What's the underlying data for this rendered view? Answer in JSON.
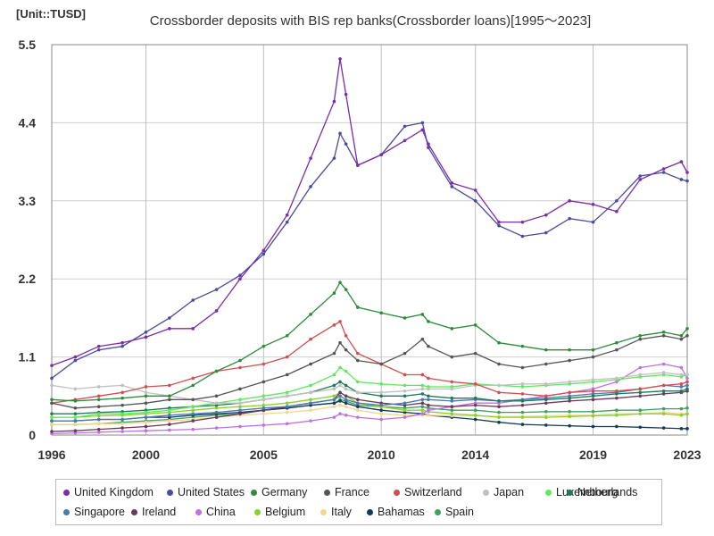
{
  "unit_label": "[Unit::TUSD]",
  "chart_data": {
    "type": "line",
    "title": "Crossborder deposits with BIS rep banks(Crossborder loans)[1995～2023]",
    "xlabel": "",
    "ylabel": "",
    "xlim": [
      1996,
      2023
    ],
    "ylim": [
      0,
      5.5
    ],
    "x_ticks": [
      1996,
      2000,
      2005,
      2010,
      2014,
      2019,
      2023
    ],
    "y_ticks": [
      0,
      1.1,
      2.2,
      3.3,
      4.4,
      5.5
    ],
    "grid": true,
    "legend_position": "bottom",
    "x": [
      1996,
      1997,
      1998,
      1999,
      2000,
      2001,
      2002,
      2003,
      2004,
      2005,
      2006,
      2007,
      2008,
      2008.25,
      2008.5,
      2009,
      2010,
      2011,
      2011.75,
      2012,
      2013,
      2014,
      2015,
      2016,
      2017,
      2018,
      2019,
      2020,
      2021,
      2022,
      2022.75,
      2023
    ],
    "series": [
      {
        "name": "United Kingdom",
        "color": "#7b2ca8",
        "values": [
          0.98,
          1.1,
          1.25,
          1.3,
          1.38,
          1.5,
          1.5,
          1.75,
          2.2,
          2.6,
          3.1,
          3.9,
          4.7,
          5.3,
          4.8,
          3.8,
          3.95,
          4.15,
          4.3,
          4.1,
          3.55,
          3.45,
          3.0,
          3.0,
          3.1,
          3.3,
          3.25,
          3.15,
          3.6,
          3.75,
          3.85,
          3.7
        ]
      },
      {
        "name": "United States",
        "color": "#4a4a9e",
        "values": [
          0.8,
          1.05,
          1.2,
          1.25,
          1.45,
          1.65,
          1.9,
          2.05,
          2.25,
          2.55,
          3.0,
          3.5,
          3.9,
          4.25,
          4.1,
          3.8,
          3.95,
          4.35,
          4.4,
          4.05,
          3.5,
          3.3,
          2.95,
          2.8,
          2.85,
          3.05,
          3.0,
          3.3,
          3.65,
          3.7,
          3.6,
          3.58
        ]
      },
      {
        "name": "Germany",
        "color": "#2e8b3c",
        "values": [
          0.5,
          0.48,
          0.5,
          0.52,
          0.55,
          0.55,
          0.7,
          0.9,
          1.05,
          1.25,
          1.4,
          1.7,
          2.0,
          2.15,
          2.05,
          1.8,
          1.72,
          1.65,
          1.7,
          1.6,
          1.5,
          1.55,
          1.3,
          1.25,
          1.2,
          1.2,
          1.2,
          1.3,
          1.4,
          1.45,
          1.4,
          1.5
        ]
      },
      {
        "name": "France",
        "color": "#555555",
        "values": [
          0.45,
          0.38,
          0.4,
          0.42,
          0.45,
          0.5,
          0.5,
          0.55,
          0.65,
          0.75,
          0.85,
          1.0,
          1.15,
          1.3,
          1.2,
          1.05,
          1.0,
          1.15,
          1.35,
          1.25,
          1.1,
          1.15,
          1.0,
          0.95,
          1.0,
          1.05,
          1.1,
          1.2,
          1.35,
          1.4,
          1.35,
          1.4
        ]
      },
      {
        "name": "Switzerland",
        "color": "#d05050",
        "values": [
          0.45,
          0.5,
          0.55,
          0.6,
          0.68,
          0.7,
          0.8,
          0.9,
          0.95,
          1.0,
          1.1,
          1.35,
          1.55,
          1.6,
          1.4,
          1.15,
          1.0,
          0.85,
          0.85,
          0.8,
          0.75,
          0.72,
          0.6,
          0.58,
          0.55,
          0.6,
          0.62,
          0.62,
          0.65,
          0.7,
          0.72,
          0.75
        ]
      },
      {
        "name": "Japan",
        "color": "#c0c0c0",
        "values": [
          0.7,
          0.65,
          0.68,
          0.7,
          0.6,
          0.55,
          0.5,
          0.45,
          0.45,
          0.5,
          0.55,
          0.6,
          0.65,
          0.7,
          0.65,
          0.6,
          0.6,
          0.62,
          0.65,
          0.65,
          0.65,
          0.7,
          0.7,
          0.72,
          0.72,
          0.75,
          0.78,
          0.8,
          0.85,
          0.88,
          0.85,
          0.85
        ]
      },
      {
        "name": "Luxembourg",
        "color": "#5ee85e",
        "values": [
          0.25,
          0.25,
          0.3,
          0.3,
          0.32,
          0.35,
          0.4,
          0.45,
          0.5,
          0.55,
          0.6,
          0.7,
          0.85,
          0.95,
          0.9,
          0.75,
          0.72,
          0.7,
          0.7,
          0.68,
          0.68,
          0.72,
          0.7,
          0.68,
          0.7,
          0.72,
          0.75,
          0.78,
          0.82,
          0.85,
          0.82,
          0.85
        ]
      },
      {
        "name": "Netherlands",
        "color": "#1f7a5a",
        "values": [
          0.3,
          0.3,
          0.32,
          0.33,
          0.35,
          0.38,
          0.4,
          0.42,
          0.45,
          0.5,
          0.55,
          0.6,
          0.7,
          0.75,
          0.7,
          0.6,
          0.55,
          0.55,
          0.58,
          0.55,
          0.52,
          0.52,
          0.48,
          0.48,
          0.5,
          0.52,
          0.55,
          0.58,
          0.6,
          0.62,
          0.62,
          0.65
        ]
      },
      {
        "name": "Singapore",
        "color": "#4a7bb0",
        "values": [
          0.2,
          0.2,
          0.22,
          0.22,
          0.25,
          0.28,
          0.3,
          0.32,
          0.35,
          0.38,
          0.4,
          0.45,
          0.5,
          0.55,
          0.5,
          0.45,
          0.42,
          0.45,
          0.5,
          0.5,
          0.48,
          0.5,
          0.48,
          0.5,
          0.52,
          0.55,
          0.58,
          0.6,
          0.65,
          0.7,
          0.68,
          0.7
        ]
      },
      {
        "name": "Ireland",
        "color": "#6a3a5a",
        "values": [
          0.05,
          0.06,
          0.08,
          0.1,
          0.12,
          0.15,
          0.2,
          0.25,
          0.3,
          0.35,
          0.4,
          0.45,
          0.5,
          0.6,
          0.55,
          0.5,
          0.45,
          0.42,
          0.45,
          0.42,
          0.4,
          0.42,
          0.4,
          0.42,
          0.45,
          0.48,
          0.5,
          0.52,
          0.55,
          0.58,
          0.6,
          0.62
        ]
      },
      {
        "name": "China",
        "color": "#c070e0",
        "values": [
          0.02,
          0.03,
          0.04,
          0.05,
          0.06,
          0.07,
          0.08,
          0.1,
          0.12,
          0.14,
          0.16,
          0.2,
          0.25,
          0.3,
          0.28,
          0.25,
          0.22,
          0.25,
          0.3,
          0.35,
          0.4,
          0.45,
          0.45,
          0.5,
          0.55,
          0.6,
          0.65,
          0.75,
          0.95,
          1.0,
          0.95,
          0.8
        ]
      },
      {
        "name": "Belgium",
        "color": "#88d030",
        "values": [
          0.25,
          0.25,
          0.27,
          0.28,
          0.3,
          0.32,
          0.35,
          0.38,
          0.4,
          0.42,
          0.45,
          0.5,
          0.55,
          0.6,
          0.55,
          0.45,
          0.4,
          0.35,
          0.35,
          0.33,
          0.3,
          0.28,
          0.25,
          0.25,
          0.25,
          0.26,
          0.27,
          0.28,
          0.3,
          0.3,
          0.28,
          0.3
        ]
      },
      {
        "name": "Italy",
        "color": "#f0d890",
        "values": [
          0.15,
          0.15,
          0.16,
          0.16,
          0.18,
          0.2,
          0.22,
          0.25,
          0.28,
          0.3,
          0.32,
          0.35,
          0.4,
          0.42,
          0.4,
          0.35,
          0.3,
          0.28,
          0.28,
          0.28,
          0.27,
          0.27,
          0.26,
          0.26,
          0.27,
          0.28,
          0.28,
          0.3,
          0.3,
          0.32,
          0.3,
          0.3
        ]
      },
      {
        "name": "Bahamas",
        "color": "#123a5a",
        "values": [
          0.2,
          0.2,
          0.22,
          0.22,
          0.25,
          0.25,
          0.28,
          0.3,
          0.32,
          0.35,
          0.38,
          0.42,
          0.45,
          0.48,
          0.45,
          0.4,
          0.35,
          0.32,
          0.3,
          0.28,
          0.25,
          0.22,
          0.18,
          0.15,
          0.14,
          0.13,
          0.12,
          0.12,
          0.11,
          0.1,
          0.09,
          0.09
        ]
      },
      {
        "name": "Spain",
        "color": "#40a060",
        "values": [
          0.15,
          0.15,
          0.16,
          0.18,
          0.2,
          0.22,
          0.25,
          0.28,
          0.3,
          0.35,
          0.38,
          0.42,
          0.45,
          0.5,
          0.48,
          0.42,
          0.4,
          0.38,
          0.4,
          0.38,
          0.35,
          0.35,
          0.32,
          0.32,
          0.33,
          0.33,
          0.33,
          0.35,
          0.35,
          0.37,
          0.37,
          0.38
        ]
      }
    ]
  }
}
